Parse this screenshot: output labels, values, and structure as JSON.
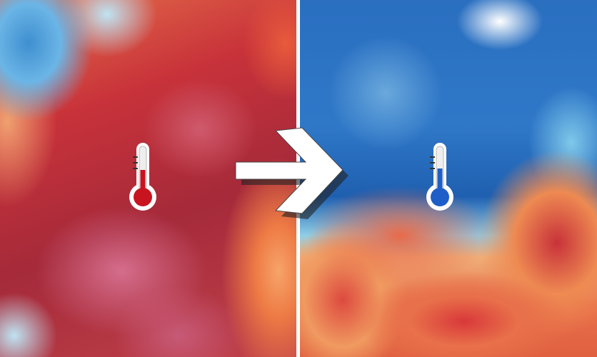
{
  "panels": [
    {
      "id": "before",
      "theme": "heat",
      "icon": "thermometer-hot-icon",
      "fluid_color": "#c8141e"
    },
    {
      "id": "after",
      "theme": "cold",
      "icon": "thermometer-cold-icon",
      "fluid_color": "#1e5ec8"
    }
  ],
  "transition_icon": "arrow-right-icon",
  "colors": {
    "heat": "#a52a3a",
    "cold": "#2a6fc0",
    "divider": "#ffffff"
  }
}
